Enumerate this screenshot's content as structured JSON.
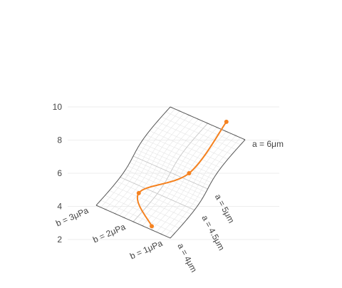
{
  "chart_data": {
    "type": "carpet",
    "y_axis": {
      "range": [
        2,
        10
      ],
      "ticks": [
        "2",
        "4",
        "6",
        "8",
        "10"
      ],
      "grid": true
    },
    "a_axis": {
      "values": [
        4,
        4.5,
        5,
        6
      ],
      "labels": [
        "a = 4μm",
        "a = 4.5μm",
        "a = 5μm",
        "a = 6μm"
      ]
    },
    "b_axis": {
      "values": [
        1,
        2,
        3
      ],
      "labels": [
        "b = 1μPa",
        "b = 2μPa",
        "b = 3μPa"
      ]
    },
    "series": [
      {
        "x_param": [
          "a",
          "a",
          "a",
          "a"
        ],
        "a": [
          4,
          4.5,
          5,
          6
        ],
        "b": [
          1.5,
          2.5,
          1.5,
          1.5
        ],
        "y": [
          2.8,
          4.8,
          6.0,
          9.1
        ]
      }
    ],
    "colors": {
      "line": "#f58220",
      "grid_minor": "#e6e6e6",
      "grid_major": "#c8c8c8",
      "edge": "#555555",
      "plot_grid": "#eeeeee"
    }
  }
}
